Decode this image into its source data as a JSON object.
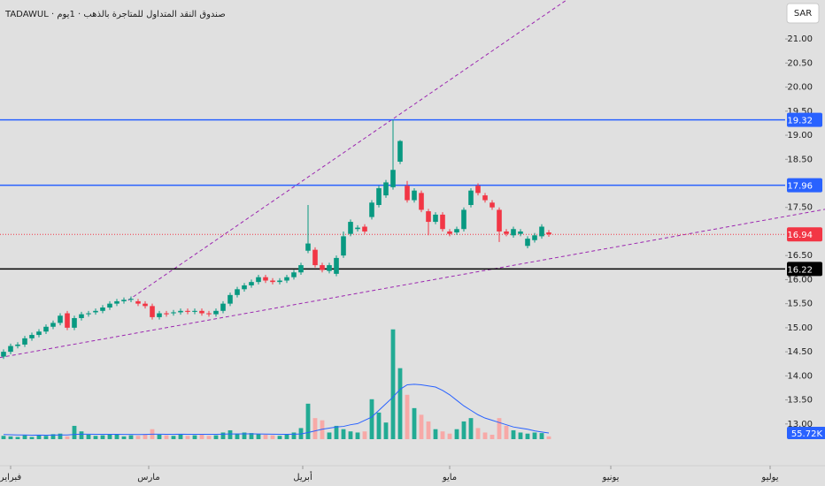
{
  "chart_data": {
    "type": "candlestick",
    "title": "TADAWUL · صندوق النقد المتداول للمتاجرة بالذهب · 1يوم",
    "currency": "SAR",
    "up_color": "#089981",
    "down_color": "#f23645",
    "volume_up_color": "#22ab94",
    "volume_down_color": "#f7a9a7",
    "xlim": [
      -0.5,
      116
    ],
    "xticks": [
      {
        "value": 1,
        "label": "فبراير"
      },
      {
        "value": 20.5,
        "label": "مارس"
      },
      {
        "value": 42.25,
        "label": "أبريل"
      },
      {
        "value": 63,
        "label": "مايو"
      },
      {
        "value": 85.75,
        "label": "يونيو"
      },
      {
        "value": 108.25,
        "label": "يوليو"
      }
    ],
    "ylim": [
      12.17,
      21.81
    ],
    "yticks": [
      {
        "value": 13,
        "label": "13.00"
      },
      {
        "value": 13.5,
        "label": "13.50"
      },
      {
        "value": 14,
        "label": "14.00"
      },
      {
        "value": 14.5,
        "label": "14.50"
      },
      {
        "value": 15,
        "label": "15.00"
      },
      {
        "value": 15.5,
        "label": "15.50"
      },
      {
        "value": 16,
        "label": "16.00"
      },
      {
        "value": 16.5,
        "label": "16.50"
      },
      {
        "value": 17.5,
        "label": "17.50"
      },
      {
        "value": 18.5,
        "label": "18.50"
      },
      {
        "value": 19,
        "label": "19.00"
      },
      {
        "value": 19.5,
        "label": "19.50"
      },
      {
        "value": 20,
        "label": "20.00"
      },
      {
        "value": 20.5,
        "label": "20.50"
      },
      {
        "value": 21,
        "label": "21.00"
      }
    ],
    "y2lim": [
      0,
      3960000
    ],
    "open": [
      14.4,
      14.5,
      14.62,
      14.65,
      14.78,
      14.85,
      14.92,
      15.02,
      15.1,
      15.3,
      15.0,
      15.2,
      15.28,
      15.32,
      15.35,
      15.42,
      15.5,
      15.55,
      15.58,
      15.55,
      15.5,
      15.45,
      15.22,
      15.3,
      15.3,
      15.32,
      15.35,
      15.33,
      15.35,
      15.3,
      15.28,
      15.35,
      15.5,
      15.68,
      15.8,
      15.88,
      15.95,
      16.05,
      15.98,
      15.95,
      15.98,
      16.05,
      16.15,
      16.6,
      16.62,
      16.3,
      16.18,
      16.12,
      16.5,
      16.95,
      17.05,
      17.1,
      17.3,
      17.55,
      17.75,
      17.92,
      18.45,
      17.95,
      17.65,
      17.8,
      17.42,
      17.2,
      17.35,
      17.0,
      16.98,
      17.05,
      17.55,
      17.95,
      17.75,
      17.6,
      17.45,
      17.0,
      16.92,
      16.95,
      16.7,
      16.82,
      16.9,
      16.98
    ],
    "high": [
      14.55,
      14.67,
      14.7,
      14.83,
      14.9,
      14.97,
      15.07,
      15.15,
      15.3,
      15.35,
      15.25,
      15.33,
      15.35,
      15.4,
      15.47,
      15.55,
      15.6,
      15.63,
      15.65,
      15.6,
      15.55,
      15.5,
      15.35,
      15.35,
      15.37,
      15.4,
      15.4,
      15.4,
      15.4,
      15.35,
      15.4,
      15.55,
      15.73,
      15.85,
      15.93,
      16.0,
      16.1,
      16.1,
      16.03,
      16.03,
      16.1,
      16.2,
      16.35,
      17.55,
      16.67,
      16.35,
      16.35,
      16.5,
      17.0,
      17.25,
      17.13,
      17.15,
      17.65,
      17.95,
      18.07,
      19.32,
      18.9,
      18.05,
      17.9,
      17.85,
      17.47,
      17.4,
      17.4,
      17.05,
      17.1,
      17.5,
      17.9,
      18.0,
      17.8,
      17.65,
      17.5,
      17.05,
      17.1,
      17.05,
      16.9,
      16.97,
      17.15,
      17.03
    ],
    "low": [
      14.35,
      14.45,
      14.57,
      14.6,
      14.73,
      14.8,
      14.87,
      14.97,
      15.05,
      14.95,
      14.95,
      15.15,
      15.23,
      15.27,
      15.3,
      15.37,
      15.45,
      15.5,
      15.53,
      15.45,
      15.4,
      15.17,
      15.17,
      15.23,
      15.25,
      15.27,
      15.28,
      15.28,
      15.25,
      15.23,
      15.23,
      15.3,
      15.45,
      15.63,
      15.75,
      15.83,
      15.9,
      15.93,
      15.9,
      15.9,
      15.93,
      16.0,
      16.1,
      16.55,
      16.25,
      16.15,
      16.13,
      16.07,
      16.45,
      16.9,
      17.0,
      16.95,
      17.25,
      17.5,
      17.7,
      17.87,
      18.4,
      17.6,
      17.6,
      17.4,
      16.92,
      17.15,
      17.0,
      16.9,
      16.93,
      17.0,
      17.5,
      17.75,
      17.6,
      17.45,
      16.78,
      16.9,
      16.87,
      16.9,
      16.65,
      16.77,
      16.85,
      16.89
    ],
    "close": [
      14.5,
      14.62,
      14.65,
      14.78,
      14.85,
      14.92,
      15.02,
      15.1,
      15.25,
      15.0,
      15.2,
      15.28,
      15.3,
      15.35,
      15.42,
      15.5,
      15.55,
      15.58,
      15.6,
      15.5,
      15.45,
      15.22,
      15.3,
      15.28,
      15.32,
      15.35,
      15.33,
      15.35,
      15.3,
      15.28,
      15.35,
      15.5,
      15.68,
      15.8,
      15.88,
      15.95,
      16.05,
      15.98,
      15.95,
      15.98,
      16.05,
      16.15,
      16.3,
      16.75,
      16.3,
      16.2,
      16.3,
      16.45,
      16.9,
      17.2,
      17.08,
      17.0,
      17.6,
      17.9,
      18.02,
      18.28,
      18.88,
      17.65,
      17.85,
      17.45,
      17.2,
      17.35,
      17.05,
      16.95,
      17.05,
      17.45,
      17.85,
      17.8,
      17.65,
      17.5,
      17.0,
      16.95,
      17.05,
      17.0,
      16.85,
      16.92,
      17.1,
      16.94
    ],
    "volume": [
      30000,
      25000,
      20000,
      35000,
      20000,
      40000,
      30000,
      45000,
      50000,
      25000,
      120000,
      70000,
      40000,
      30000,
      35000,
      45000,
      40000,
      25000,
      35000,
      30000,
      45000,
      90000,
      40000,
      35000,
      30000,
      45000,
      30000,
      35000,
      40000,
      30000,
      35000,
      60000,
      80000,
      50000,
      60000,
      55000,
      45000,
      40000,
      35000,
      30000,
      45000,
      60000,
      100000,
      320000,
      190000,
      170000,
      60000,
      120000,
      90000,
      70000,
      60000,
      70000,
      360000,
      240000,
      150000,
      990000,
      640000,
      400000,
      280000,
      220000,
      160000,
      90000,
      70000,
      50000,
      90000,
      160000,
      190000,
      100000,
      60000,
      40000,
      190000,
      120000,
      80000,
      60000,
      50000,
      60000,
      55000,
      25000
    ],
    "volume_ma": {
      "color": "#2962ff",
      "last_value_label": "55.72K",
      "values": [
        42000,
        40000,
        38000,
        38000,
        36000,
        37000,
        36000,
        37000,
        38000,
        38000,
        43000,
        45000,
        45000,
        44000,
        44000,
        44000,
        44000,
        43000,
        43000,
        42000,
        43000,
        45000,
        45000,
        44000,
        44000,
        45000,
        44000,
        44000,
        44000,
        44000,
        44000,
        45000,
        47000,
        47000,
        48000,
        48000,
        47000,
        46000,
        45000,
        44000,
        44000,
        45000,
        47000,
        60000,
        75000,
        90000,
        100000,
        110000,
        115000,
        130000,
        140000,
        170000,
        200000,
        260000,
        320000,
        380000,
        450000,
        490000,
        495000,
        490000,
        480000,
        470000,
        440000,
        400000,
        350000,
        300000,
        260000,
        220000,
        190000,
        170000,
        150000,
        130000,
        110000,
        100000,
        90000,
        75000,
        65000,
        55720
      ]
    },
    "levels": [
      {
        "value": 19.32,
        "color": "#2962ff",
        "style": "solid"
      },
      {
        "value": 17.96,
        "color": "#2962ff",
        "style": "solid"
      },
      {
        "value": 16.94,
        "color": "#f23645",
        "style": "dotted"
      },
      {
        "value": 16.22,
        "color": "#000000",
        "style": "solid"
      }
    ],
    "trendlines": [
      {
        "color": "#9c27b0",
        "points": [
          [
            17.6,
            15.57
          ],
          [
            79.5,
            21.81
          ]
        ]
      },
      {
        "color": "#9c27b0",
        "points": [
          [
            -0.5,
            14.38
          ],
          [
            116,
            17.46
          ]
        ]
      }
    ]
  }
}
